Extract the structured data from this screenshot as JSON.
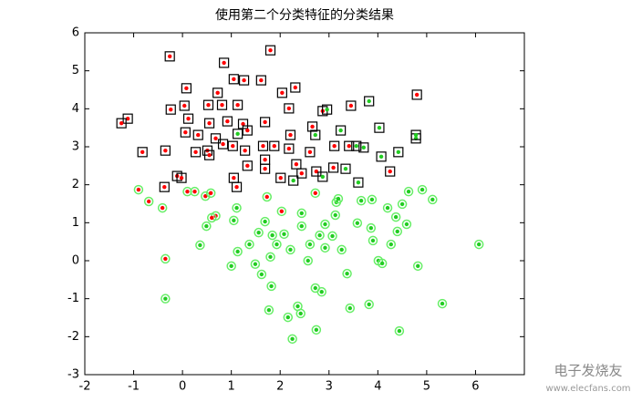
{
  "chart_data": {
    "type": "scatter",
    "title": "使用第二个分类特征的分类结果",
    "xlim": [
      -2,
      7
    ],
    "ylim": [
      -3,
      6
    ],
    "xticks": [
      -2,
      -1,
      0,
      1,
      2,
      3,
      4,
      5,
      6
    ],
    "yticks": [
      -3,
      -2,
      -1,
      0,
      1,
      2,
      3,
      4,
      5,
      6
    ],
    "series": [
      {
        "color": "#ff0000",
        "marker": "square",
        "marker_color": "#000000",
        "x": [
          -0.26,
          1.8,
          0.85,
          0.08,
          1.05,
          1.26,
          1.61,
          2.31,
          2.04,
          4.8,
          0.72,
          -0.24,
          0.04,
          0.53,
          0.81,
          1.13,
          2.18,
          2.87,
          3.45,
          -1.12,
          -1.25,
          0.12,
          0.55,
          0.92,
          1.24,
          1.69,
          1.33,
          2.66,
          2.21,
          0.32,
          0.06,
          0.68,
          1.03,
          0.27,
          0.51,
          1.65,
          1.88,
          -0.35,
          -0.82,
          0.55,
          0.83,
          1.28,
          2.18,
          2.61,
          3.11,
          3.41,
          1.69,
          1.33,
          2.33,
          1.69,
          2.74,
          3.09,
          4.25,
          -0.11,
          -0.02,
          1.05,
          2.01,
          2.44,
          -0.37,
          1.11
        ],
        "values": [
          5.38,
          5.54,
          5.21,
          4.54,
          4.78,
          4.75,
          4.75,
          4.56,
          4.42,
          4.37,
          4.42,
          3.98,
          4.08,
          4.1,
          4.1,
          4.1,
          4.01,
          3.94,
          4.08,
          3.74,
          3.62,
          3.74,
          3.62,
          3.67,
          3.6,
          3.65,
          3.43,
          3.53,
          3.31,
          3.31,
          3.38,
          3.22,
          3.02,
          2.86,
          2.9,
          3.02,
          3.02,
          2.9,
          2.86,
          2.78,
          3.07,
          2.9,
          2.95,
          2.86,
          3.02,
          3.02,
          2.66,
          2.5,
          2.54,
          2.42,
          2.35,
          2.45,
          2.35,
          2.23,
          2.18,
          2.18,
          2.18,
          2.3,
          1.94,
          1.94
        ]
      },
      {
        "color": "#22cc22",
        "marker": "square",
        "marker_color": "#000000",
        "x": [
          2.96,
          3.82,
          4.03,
          3.24,
          2.72,
          3.56,
          3.71,
          4.07,
          4.42,
          4.78,
          4.78,
          3.34,
          3.6,
          2.27,
          2.87,
          1.13
        ],
        "values": [
          3.98,
          4.2,
          3.5,
          3.43,
          3.31,
          3.02,
          2.98,
          2.74,
          2.86,
          3.22,
          3.31,
          2.42,
          2.06,
          2.11,
          2.21,
          3.34
        ]
      },
      {
        "color": "#ff0000",
        "marker": "circle",
        "marker_color": "#66ee66",
        "x": [
          -0.9,
          -0.69,
          -0.41,
          0.1,
          0.25,
          0.47,
          0.58,
          0.68,
          0.6,
          1.73,
          2.03,
          -0.35,
          2.72
        ],
        "values": [
          1.87,
          1.56,
          1.39,
          1.82,
          1.82,
          1.7,
          1.78,
          1.18,
          1.13,
          1.68,
          1.3,
          0.05,
          1.78
        ]
      },
      {
        "color": "#22cc22",
        "marker": "circle",
        "marker_color": "#66ee66",
        "x": [
          -0.35,
          0.36,
          0.49,
          1.05,
          1.0,
          1.13,
          1.37,
          1.56,
          1.69,
          1.49,
          1.62,
          1.8,
          1.84,
          1.82,
          1.77,
          1.93,
          2.08,
          2.21,
          2.16,
          2.25,
          2.36,
          2.42,
          2.44,
          2.44,
          2.61,
          2.57,
          2.74,
          2.72,
          2.85,
          2.81,
          2.92,
          2.92,
          3.07,
          3.15,
          3.13,
          3.19,
          3.26,
          3.37,
          3.43,
          3.58,
          3.66,
          3.88,
          3.86,
          3.9,
          4.01,
          4.09,
          3.82,
          4.2,
          4.27,
          4.4,
          4.5,
          4.44,
          4.63,
          4.82,
          4.91,
          5.12,
          5.32,
          6.07,
          4.59,
          4.37,
          1.11
        ],
        "values": [
          -1.0,
          0.41,
          0.91,
          1.06,
          -0.14,
          0.24,
          0.43,
          0.74,
          1.03,
          -0.09,
          -0.36,
          0.1,
          0.67,
          -0.67,
          -1.3,
          0.43,
          0.7,
          0.29,
          -1.49,
          -2.06,
          -1.2,
          -1.39,
          1.25,
          0.91,
          0.43,
          0.0,
          -1.82,
          -0.72,
          -0.82,
          0.67,
          0.96,
          0.34,
          0.65,
          1.54,
          1.2,
          1.63,
          0.29,
          -0.34,
          -1.25,
          0.99,
          1.58,
          1.61,
          0.86,
          0.53,
          0.0,
          -0.07,
          -1.15,
          1.39,
          0.43,
          0.77,
          1.49,
          -1.85,
          1.82,
          -0.14,
          1.87,
          1.61,
          -1.13,
          0.43,
          0.96,
          1.15,
          1.39
        ]
      }
    ]
  },
  "watermark": {
    "brand": "电子发烧友",
    "url": "www.elecfans.com"
  }
}
